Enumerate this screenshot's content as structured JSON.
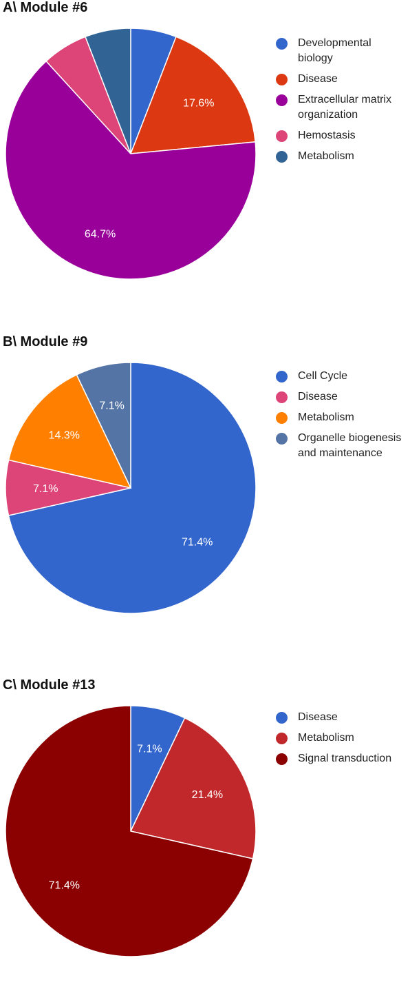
{
  "chart_data": [
    {
      "type": "pie",
      "title": "A\\ Module #6",
      "slices": [
        {
          "label": "Developmental biology",
          "value": 5.9,
          "color": "#3366cc",
          "data_label": ""
        },
        {
          "label": "Disease",
          "value": 17.6,
          "color": "#dc3912",
          "data_label": "17.6%"
        },
        {
          "label": "Extracellular matrix organization",
          "value": 64.7,
          "color": "#990099",
          "data_label": "64.7%"
        },
        {
          "label": "Hemostasis",
          "value": 5.9,
          "color": "#dd4477",
          "data_label": ""
        },
        {
          "label": "Metabolism",
          "value": 5.9,
          "color": "#316395",
          "data_label": ""
        }
      ],
      "legend": {
        "position": "right",
        "entries": [
          "Developmental biology",
          "Disease",
          "Extracellular matrix organization",
          "Hemostasis",
          "Metabolism"
        ]
      }
    },
    {
      "type": "pie",
      "title": "B\\ Module #9",
      "slices": [
        {
          "label": "Cell Cycle",
          "value": 71.4,
          "color": "#3366cc",
          "data_label": "71.4%"
        },
        {
          "label": "Disease",
          "value": 7.1,
          "color": "#dd4477",
          "data_label": "7.1%"
        },
        {
          "label": "Metabolism",
          "value": 14.3,
          "color": "#ff7f00",
          "data_label": "14.3%"
        },
        {
          "label": "Organelle biogenesis and maintenance",
          "value": 7.1,
          "color": "#5574a6",
          "data_label": "7.1%"
        }
      ],
      "legend": {
        "position": "right",
        "entries": [
          "Cell Cycle",
          "Disease",
          "Metabolism",
          "Organelle biogenesis and maintenance"
        ]
      }
    },
    {
      "type": "pie",
      "title": "C\\ Module #13",
      "slices": [
        {
          "label": "Disease",
          "value": 7.1,
          "color": "#3366cc",
          "data_label": "7.1%"
        },
        {
          "label": "Metabolism",
          "value": 21.4,
          "color": "#c0282b",
          "data_label": "21.4%"
        },
        {
          "label": "Signal transduction",
          "value": 71.4,
          "color": "#8b0000",
          "data_label": "71.4%"
        }
      ],
      "legend": {
        "position": "right",
        "entries": [
          "Disease",
          "Metabolism",
          "Signal transduction"
        ]
      }
    }
  ]
}
